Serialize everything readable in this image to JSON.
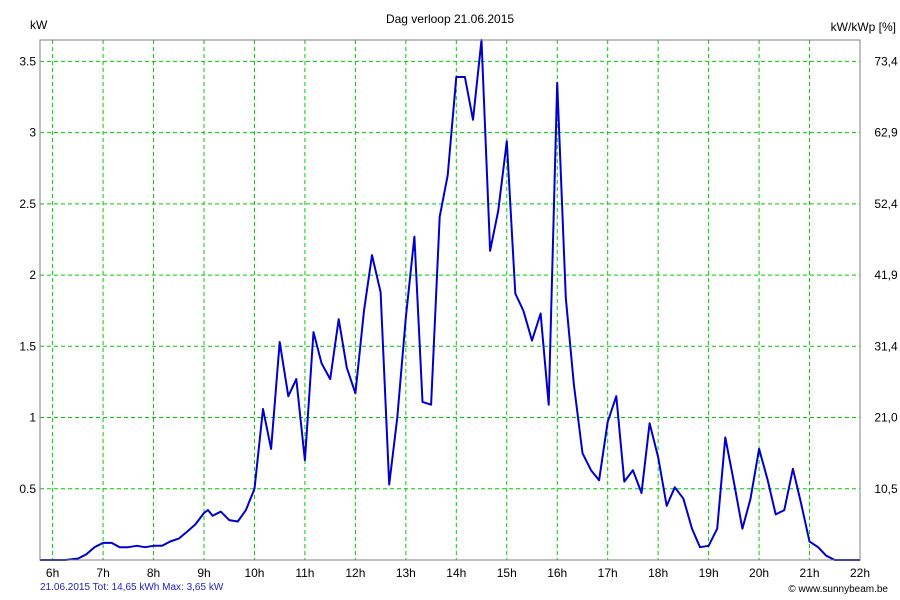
{
  "chart_data": {
    "type": "line",
    "title": "Dag  verloop 21.06.2015",
    "ylabel": "kW",
    "ylabel_right": "kW/kWp [%]",
    "xlim": [
      5.75,
      22.0
    ],
    "ylim": [
      0,
      3.65
    ],
    "x_ticks": [
      6,
      7,
      8,
      9,
      10,
      11,
      12,
      13,
      14,
      15,
      16,
      17,
      18,
      19,
      20,
      21,
      22
    ],
    "x_tick_labels": [
      "6h",
      "7h",
      "8h",
      "9h",
      "10h",
      "11h",
      "12h",
      "13h",
      "14h",
      "15h",
      "16h",
      "17h",
      "18h",
      "19h",
      "20h",
      "21h",
      "22h"
    ],
    "y_ticks": [
      0.5,
      1,
      1.5,
      2,
      2.5,
      3,
      3.5
    ],
    "y_tick_labels": [
      "0.5",
      "1",
      "1.5",
      "2",
      "2.5",
      "3",
      "3.5"
    ],
    "y_right_ticks": [
      0.5,
      1,
      1.5,
      2,
      2.5,
      3,
      3.5
    ],
    "y_right_tick_labels": [
      "10,5",
      "21,0",
      "31,4",
      "41,9",
      "52,4",
      "62,9",
      "73,4"
    ],
    "grid": true,
    "series": [
      {
        "color": "#0000cc",
        "x": [
          5.75,
          6.0,
          6.25,
          6.5,
          6.67,
          6.83,
          7.0,
          7.17,
          7.33,
          7.5,
          7.67,
          7.83,
          8.0,
          8.17,
          8.33,
          8.5,
          8.67,
          8.83,
          9.0,
          9.08,
          9.17,
          9.33,
          9.5,
          9.67,
          9.83,
          10.0,
          10.17,
          10.33,
          10.5,
          10.67,
          10.83,
          11.0,
          11.17,
          11.33,
          11.5,
          11.67,
          11.83,
          12.0,
          12.17,
          12.33,
          12.5,
          12.67,
          12.83,
          13.0,
          13.17,
          13.33,
          13.5,
          13.67,
          13.83,
          14.0,
          14.17,
          14.33,
          14.5,
          14.67,
          14.83,
          15.0,
          15.17,
          15.33,
          15.5,
          15.67,
          15.83,
          16.0,
          16.17,
          16.33,
          16.5,
          16.67,
          16.83,
          17.0,
          17.17,
          17.33,
          17.5,
          17.67,
          17.83,
          18.0,
          18.17,
          18.33,
          18.5,
          18.67,
          18.83,
          19.0,
          19.17,
          19.33,
          19.5,
          19.67,
          19.83,
          20.0,
          20.17,
          20.33,
          20.5,
          20.67,
          20.83,
          21.0,
          21.17,
          21.33,
          21.5,
          21.67,
          22.0
        ],
        "values": [
          0.0,
          0.0,
          0.0,
          0.01,
          0.04,
          0.09,
          0.12,
          0.12,
          0.09,
          0.09,
          0.1,
          0.09,
          0.1,
          0.1,
          0.13,
          0.15,
          0.2,
          0.25,
          0.33,
          0.35,
          0.31,
          0.34,
          0.28,
          0.27,
          0.35,
          0.5,
          1.06,
          0.78,
          1.53,
          1.15,
          1.27,
          0.7,
          1.6,
          1.38,
          1.27,
          1.69,
          1.35,
          1.17,
          1.75,
          2.14,
          1.88,
          0.53,
          1.0,
          1.7,
          2.27,
          1.11,
          1.09,
          2.41,
          2.7,
          3.39,
          3.39,
          3.09,
          3.65,
          2.17,
          2.45,
          2.94,
          1.87,
          1.75,
          1.54,
          1.73,
          1.09,
          3.35,
          1.84,
          1.23,
          0.75,
          0.63,
          0.56,
          0.97,
          1.15,
          0.55,
          0.63,
          0.47,
          0.96,
          0.72,
          0.38,
          0.51,
          0.43,
          0.22,
          0.09,
          0.1,
          0.22,
          0.86,
          0.55,
          0.22,
          0.43,
          0.78,
          0.56,
          0.32,
          0.35,
          0.64,
          0.4,
          0.13,
          0.09,
          0.03,
          0.0,
          0.0,
          0.0
        ]
      }
    ]
  },
  "footer": {
    "summary": "21.06.2015 Tot: 14,65 kWh Max: 3,65 kW",
    "copyright": "© www.sunnybeam.be"
  }
}
